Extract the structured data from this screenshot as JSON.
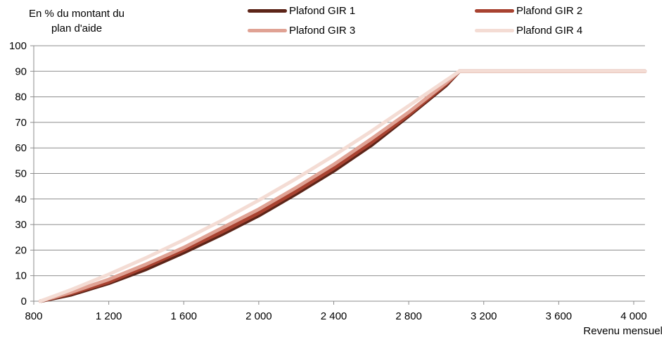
{
  "chart_data": {
    "type": "line",
    "title": "",
    "ylabel_lines": [
      "En % du montant du",
      "plan d'aide"
    ],
    "xlabel": "Revenu mensuel",
    "xlim": [
      800,
      4060
    ],
    "ylim": [
      0,
      100
    ],
    "xticks": [
      800,
      1200,
      1600,
      2000,
      2400,
      2800,
      3200,
      3600,
      4000
    ],
    "xtick_labels": [
      "800",
      "1 200",
      "1 600",
      "2 000",
      "2 400",
      "2 800",
      "3 200",
      "3 600",
      "4 000"
    ],
    "yticks": [
      0,
      10,
      20,
      30,
      40,
      50,
      60,
      70,
      80,
      90,
      100
    ],
    "ytick_labels": [
      "0",
      "10",
      "20",
      "30",
      "40",
      "50",
      "60",
      "70",
      "80",
      "90",
      "100"
    ],
    "grid": true,
    "legend_position": "top",
    "series": [
      {
        "name": "Plafond GIR 1",
        "color": "#5c2418",
        "x": [
          835,
          1000,
          1200,
          1400,
          1600,
          1800,
          2000,
          2200,
          2400,
          2600,
          2800,
          3000,
          3070,
          4060
        ],
        "y": [
          0,
          2.5,
          7,
          12.5,
          19,
          26,
          33.5,
          42,
          51,
          61,
          72.5,
          84.5,
          90,
          90
        ]
      },
      {
        "name": "Plafond GIR 2",
        "color": "#a84230",
        "x": [
          835,
          1000,
          1200,
          1400,
          1600,
          1800,
          2000,
          2200,
          2400,
          2600,
          2800,
          3000,
          3070,
          4060
        ],
        "y": [
          0,
          3,
          7.5,
          13.5,
          20,
          27,
          34.5,
          43,
          52,
          62,
          73,
          85,
          90,
          90
        ]
      },
      {
        "name": "Plafond GIR 3",
        "color": "#e0a294",
        "x": [
          835,
          1000,
          1200,
          1400,
          1600,
          1800,
          2000,
          2200,
          2400,
          2600,
          2800,
          3000,
          3070,
          4060
        ],
        "y": [
          0,
          3.5,
          8.5,
          14.5,
          21,
          28.5,
          36,
          44.5,
          53.5,
          63.5,
          74,
          85.5,
          90,
          90
        ]
      },
      {
        "name": "Plafond GIR 4",
        "color": "#f4dcd4",
        "x": [
          835,
          1000,
          1200,
          1400,
          1600,
          1800,
          2000,
          2200,
          2400,
          2600,
          2800,
          3000,
          3070,
          4060
        ],
        "y": [
          0,
          4.5,
          10.5,
          17,
          24,
          31.5,
          39.5,
          48,
          57,
          66.5,
          76.5,
          86.5,
          90,
          90
        ]
      }
    ]
  }
}
